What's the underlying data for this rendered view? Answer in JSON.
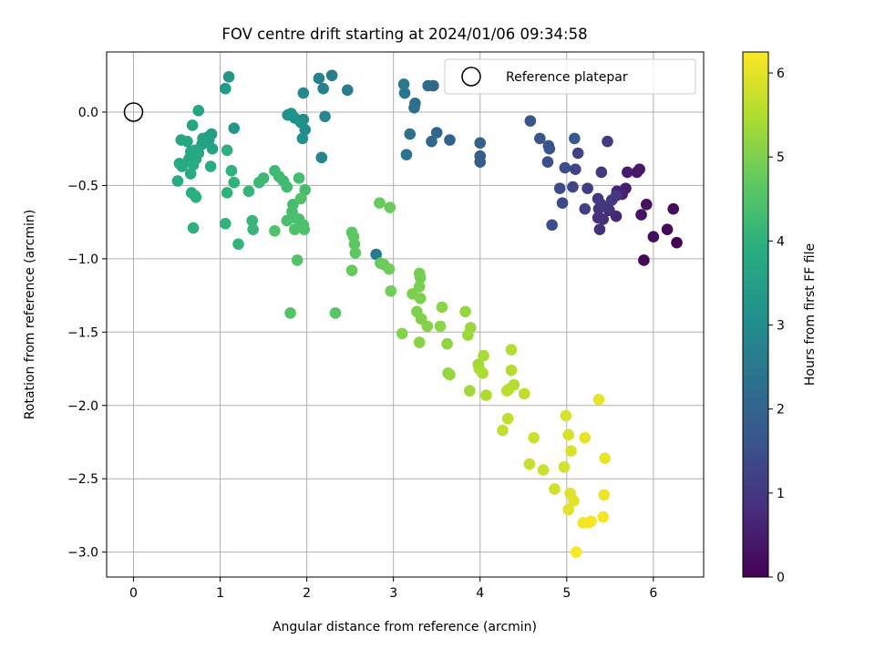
{
  "chart_data": {
    "type": "scatter",
    "title": "FOV centre drift starting at 2024/01/06 09:34:58",
    "xlabel": "Angular distance from reference (arcmin)",
    "ylabel": "Rotation from reference (arcmin)",
    "colorbar_label": "Hours from first FF file",
    "colormap": "viridis",
    "xlim": [
      -0.31,
      6.58
    ],
    "ylim": [
      -3.17,
      0.41
    ],
    "xticks": [
      "0",
      "1",
      "2",
      "3",
      "4",
      "5",
      "6"
    ],
    "yticks": [
      "0.0",
      "−0.5",
      "−1.0",
      "−1.5",
      "−2.0",
      "−2.5",
      "−3.0"
    ],
    "colorbar_range": [
      0,
      6.25
    ],
    "colorbar_ticks": [
      "0",
      "1",
      "2",
      "3",
      "4",
      "5",
      "6"
    ],
    "grid": true,
    "legend": {
      "position": "top-right",
      "label": "Reference platepar"
    },
    "reference_point": [
      0,
      0
    ],
    "series": [
      {
        "points": [
          [
            6.27,
            -0.89,
            0.05
          ],
          [
            5.89,
            -1.01,
            0.1
          ],
          [
            6.16,
            -0.8,
            0.15
          ],
          [
            6.23,
            -0.66,
            0.2
          ],
          [
            6.0,
            -0.85,
            0.25
          ],
          [
            5.92,
            -0.63,
            0.3
          ],
          [
            5.86,
            -0.7,
            0.35
          ],
          [
            5.81,
            -0.41,
            0.4
          ],
          [
            5.84,
            -0.39,
            0.45
          ],
          [
            5.7,
            -0.41,
            0.5
          ],
          [
            5.68,
            -0.52,
            0.55
          ],
          [
            5.64,
            -0.56,
            0.6
          ],
          [
            5.58,
            -0.54,
            0.65
          ],
          [
            5.57,
            -0.71,
            0.7
          ],
          [
            5.49,
            -0.67,
            0.75
          ],
          [
            5.42,
            -0.73,
            0.8
          ],
          [
            5.38,
            -0.8,
            0.85
          ],
          [
            5.36,
            -0.72,
            0.9
          ],
          [
            5.37,
            -0.66,
            0.95
          ],
          [
            5.47,
            -0.65,
            0.95
          ],
          [
            5.4,
            -0.63,
            0.98
          ],
          [
            5.52,
            -0.6,
            1.0
          ],
          [
            5.57,
            -0.57,
            1.0
          ],
          [
            5.36,
            -0.59,
            1.02
          ],
          [
            5.4,
            -0.41,
            1.05
          ],
          [
            5.47,
            -0.2,
            1.1
          ],
          [
            5.24,
            -0.52,
            1.15
          ],
          [
            5.21,
            -0.66,
            1.2
          ],
          [
            5.13,
            -0.28,
            1.25
          ],
          [
            5.1,
            -0.39,
            1.3
          ],
          [
            5.07,
            -0.51,
            1.35
          ],
          [
            4.95,
            -0.62,
            1.4
          ],
          [
            4.92,
            -0.52,
            1.45
          ],
          [
            4.98,
            -0.38,
            1.5
          ],
          [
            4.83,
            -0.77,
            1.5
          ],
          [
            4.78,
            -0.34,
            1.55
          ],
          [
            4.8,
            -0.25,
            1.6
          ],
          [
            4.79,
            -0.23,
            1.62
          ],
          [
            4.69,
            -0.18,
            1.65
          ],
          [
            4.58,
            -0.06,
            1.7
          ],
          [
            5.09,
            -0.18,
            1.75
          ],
          [
            4.0,
            -0.34,
            1.85
          ],
          [
            4.0,
            -0.3,
            1.9
          ],
          [
            4.0,
            -0.21,
            1.95
          ],
          [
            3.65,
            -0.19,
            2.0
          ],
          [
            3.5,
            -0.14,
            2.05
          ],
          [
            3.44,
            -0.2,
            2.1
          ],
          [
            3.46,
            0.18,
            2.15
          ],
          [
            3.4,
            0.18,
            2.2
          ],
          [
            3.25,
            0.06,
            2.25
          ],
          [
            3.24,
            0.03,
            2.3
          ],
          [
            3.19,
            -0.15,
            2.35
          ],
          [
            3.15,
            -0.29,
            2.4
          ],
          [
            3.13,
            0.13,
            2.45
          ],
          [
            3.12,
            0.19,
            2.5
          ],
          [
            2.8,
            -0.97,
            2.55
          ],
          [
            2.47,
            0.15,
            2.65
          ],
          [
            2.29,
            0.25,
            2.7
          ],
          [
            2.19,
            0.16,
            2.75
          ],
          [
            2.14,
            0.23,
            2.8
          ],
          [
            2.17,
            -0.31,
            2.85
          ],
          [
            2.21,
            -0.03,
            2.9
          ],
          [
            1.96,
            0.13,
            2.95
          ],
          [
            1.96,
            -0.05,
            3.0
          ],
          [
            1.98,
            -0.12,
            3.05
          ],
          [
            1.95,
            -0.18,
            3.1
          ],
          [
            1.93,
            -0.07,
            3.12
          ],
          [
            1.86,
            -0.04,
            3.15
          ],
          [
            1.82,
            -0.01,
            3.18
          ],
          [
            1.78,
            -0.02,
            3.2
          ],
          [
            1.1,
            0.24,
            3.3
          ],
          [
            1.16,
            -0.11,
            3.35
          ],
          [
            1.06,
            0.16,
            3.4
          ],
          [
            0.9,
            -0.15,
            3.45
          ],
          [
            0.86,
            -0.17,
            3.5
          ],
          [
            0.87,
            -0.19,
            3.55
          ],
          [
            0.91,
            -0.25,
            3.6
          ],
          [
            0.79,
            -0.22,
            3.62
          ],
          [
            0.8,
            -0.18,
            3.65
          ],
          [
            0.75,
            0.01,
            3.68
          ],
          [
            0.68,
            -0.09,
            3.7
          ],
          [
            0.55,
            -0.19,
            3.72
          ],
          [
            0.62,
            -0.2,
            3.75
          ],
          [
            0.71,
            -0.26,
            3.75
          ],
          [
            0.75,
            -0.28,
            3.78
          ],
          [
            0.66,
            -0.27,
            3.8
          ],
          [
            0.64,
            -0.32,
            3.8
          ],
          [
            0.72,
            -0.32,
            3.82
          ],
          [
            0.66,
            -0.42,
            3.85
          ],
          [
            0.53,
            -0.35,
            3.85
          ],
          [
            0.56,
            -0.37,
            3.88
          ],
          [
            0.51,
            -0.47,
            3.9
          ],
          [
            0.69,
            -0.36,
            3.9
          ],
          [
            0.89,
            -0.37,
            3.92
          ],
          [
            0.67,
            -0.55,
            3.95
          ],
          [
            0.71,
            -0.57,
            3.95
          ],
          [
            0.72,
            -0.58,
            3.98
          ],
          [
            0.69,
            -0.79,
            4.0
          ],
          [
            1.08,
            -0.26,
            4.0
          ],
          [
            1.13,
            -0.4,
            4.02
          ],
          [
            1.16,
            -0.48,
            4.05
          ],
          [
            1.08,
            -0.55,
            4.05
          ],
          [
            1.06,
            -0.76,
            4.08
          ],
          [
            1.21,
            -0.9,
            4.1
          ],
          [
            1.33,
            -0.54,
            4.12
          ],
          [
            1.37,
            -0.74,
            4.15
          ],
          [
            1.38,
            -0.8,
            4.15
          ],
          [
            1.45,
            -0.48,
            4.2
          ],
          [
            1.5,
            -0.45,
            4.22
          ],
          [
            1.63,
            -0.4,
            4.25
          ],
          [
            1.68,
            -0.44,
            4.28
          ],
          [
            1.73,
            -0.47,
            4.3
          ],
          [
            1.77,
            -0.51,
            4.32
          ],
          [
            1.91,
            -0.45,
            4.35
          ],
          [
            1.98,
            -0.53,
            4.35
          ],
          [
            1.84,
            -0.63,
            4.38
          ],
          [
            1.83,
            -0.68,
            4.4
          ],
          [
            1.86,
            -0.72,
            4.4
          ],
          [
            1.77,
            -0.74,
            4.42
          ],
          [
            1.91,
            -0.73,
            4.45
          ],
          [
            1.96,
            -0.77,
            4.45
          ],
          [
            1.97,
            -0.8,
            4.48
          ],
          [
            1.86,
            -0.8,
            4.48
          ],
          [
            1.63,
            -0.81,
            4.5
          ],
          [
            1.93,
            -0.59,
            4.5
          ],
          [
            1.89,
            -1.01,
            4.52
          ],
          [
            1.81,
            -1.37,
            4.55
          ],
          [
            2.33,
            -1.37,
            4.6
          ],
          [
            2.52,
            -0.82,
            4.65
          ],
          [
            2.54,
            -0.85,
            4.68
          ],
          [
            2.55,
            -0.9,
            4.7
          ],
          [
            2.56,
            -0.96,
            4.72
          ],
          [
            2.52,
            -1.08,
            4.75
          ],
          [
            2.85,
            -1.03,
            4.78
          ],
          [
            2.84,
            -0.62,
            4.8
          ],
          [
            2.96,
            -0.65,
            4.82
          ],
          [
            2.89,
            -1.04,
            4.85
          ],
          [
            2.95,
            -1.07,
            4.88
          ],
          [
            2.97,
            -1.22,
            4.9
          ],
          [
            3.3,
            -1.1,
            4.92
          ],
          [
            3.31,
            -1.13,
            4.95
          ],
          [
            3.3,
            -1.19,
            4.98
          ],
          [
            3.22,
            -1.24,
            5.0
          ],
          [
            3.31,
            -1.27,
            5.0
          ],
          [
            3.27,
            -1.36,
            5.02
          ],
          [
            3.32,
            -1.41,
            5.05
          ],
          [
            3.39,
            -1.46,
            5.08
          ],
          [
            3.1,
            -1.51,
            5.1
          ],
          [
            3.3,
            -1.57,
            5.12
          ],
          [
            3.56,
            -1.33,
            5.15
          ],
          [
            3.54,
            -1.46,
            5.18
          ],
          [
            3.62,
            -1.58,
            5.2
          ],
          [
            3.63,
            -1.78,
            5.22
          ],
          [
            3.65,
            -1.79,
            5.25
          ],
          [
            3.83,
            -1.36,
            5.28
          ],
          [
            3.89,
            -1.47,
            5.3
          ],
          [
            3.86,
            -1.52,
            5.32
          ],
          [
            3.88,
            -1.9,
            5.35
          ],
          [
            3.98,
            -1.72,
            5.4
          ],
          [
            3.99,
            -1.75,
            5.42
          ],
          [
            4.04,
            -1.66,
            5.45
          ],
          [
            4.03,
            -1.78,
            5.48
          ],
          [
            4.07,
            -1.93,
            5.5
          ],
          [
            4.36,
            -1.62,
            5.52
          ],
          [
            4.36,
            -1.76,
            5.55
          ],
          [
            4.39,
            -1.86,
            5.58
          ],
          [
            4.33,
            -1.89,
            5.6
          ],
          [
            4.31,
            -1.9,
            5.62
          ],
          [
            4.51,
            -1.92,
            5.65
          ],
          [
            4.26,
            -2.17,
            5.68
          ],
          [
            4.32,
            -2.09,
            5.7
          ],
          [
            4.57,
            -2.4,
            5.75
          ],
          [
            4.62,
            -2.22,
            5.78
          ],
          [
            4.73,
            -2.44,
            5.8
          ],
          [
            4.86,
            -2.57,
            5.82
          ],
          [
            4.97,
            -2.42,
            5.85
          ],
          [
            4.99,
            -2.07,
            5.88
          ],
          [
            5.02,
            -2.2,
            5.9
          ],
          [
            5.05,
            -2.31,
            5.92
          ],
          [
            5.04,
            -2.6,
            5.95
          ],
          [
            5.08,
            -2.65,
            5.98
          ],
          [
            5.02,
            -2.71,
            6.0
          ],
          [
            5.21,
            -2.22,
            6.02
          ],
          [
            5.37,
            -1.96,
            6.05
          ],
          [
            5.44,
            -2.36,
            6.08
          ],
          [
            5.43,
            -2.61,
            6.1
          ],
          [
            5.19,
            -2.8,
            6.12
          ],
          [
            5.25,
            -2.8,
            6.15
          ],
          [
            5.28,
            -2.79,
            6.18
          ],
          [
            5.42,
            -2.76,
            6.2
          ],
          [
            5.11,
            -3.0,
            6.22
          ]
        ]
      }
    ]
  }
}
